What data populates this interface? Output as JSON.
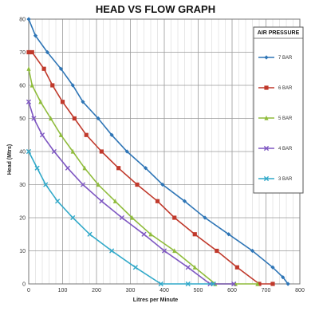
{
  "chart_data": {
    "type": "line",
    "title": "HEAD VS FLOW GRAPH",
    "xlabel": "Litres per Minute",
    "ylabel": "Head (Mtrs)",
    "xlim": [
      0,
      800
    ],
    "ylim": [
      0,
      80
    ],
    "xticks": [
      0,
      100,
      200,
      300,
      400,
      500,
      600,
      700,
      800
    ],
    "yticks": [
      0,
      10,
      20,
      30,
      40,
      50,
      60,
      70,
      80
    ],
    "grid": true,
    "legend_title": "AIR PRESSURE",
    "legend_position": "right",
    "series": [
      {
        "name": "7 BAR",
        "color": "#2e75b6",
        "marker": "diamond",
        "x": [
          0,
          20,
          55,
          95,
          130,
          160,
          205,
          245,
          290,
          345,
          395,
          460,
          520,
          590,
          660,
          720,
          750,
          765
        ],
        "y": [
          80,
          75,
          70,
          65,
          60,
          55,
          50,
          45,
          40,
          35,
          30,
          25,
          20,
          15,
          10,
          5,
          2,
          0
        ]
      },
      {
        "name": "6 BAR",
        "color": "#c0392b",
        "marker": "square",
        "x": [
          0,
          10,
          45,
          70,
          100,
          135,
          170,
          215,
          265,
          320,
          380,
          430,
          490,
          555,
          615,
          680,
          720
        ],
        "y": [
          70,
          70,
          65,
          60,
          55,
          50,
          45,
          40,
          35,
          30,
          25,
          20,
          15,
          10,
          5,
          0,
          0
        ]
      },
      {
        "name": "5 BAR",
        "color": "#8fbc3b",
        "marker": "triangle",
        "x": [
          0,
          10,
          35,
          65,
          95,
          130,
          165,
          205,
          255,
          305,
          360,
          430,
          490,
          550,
          610,
          675
        ],
        "y": [
          65,
          60,
          55,
          50,
          45,
          40,
          35,
          30,
          25,
          20,
          15,
          10,
          5,
          0,
          0,
          0
        ]
      },
      {
        "name": "4 BAR",
        "color": "#7e57c2",
        "marker": "x",
        "x": [
          0,
          15,
          40,
          75,
          115,
          160,
          215,
          275,
          340,
          400,
          470,
          535,
          605
        ],
        "y": [
          55,
          50,
          45,
          40,
          35,
          30,
          25,
          20,
          15,
          10,
          5,
          0,
          0
        ]
      },
      {
        "name": "3 BAR",
        "color": "#31a9c9",
        "marker": "x",
        "x": [
          0,
          25,
          50,
          85,
          130,
          180,
          245,
          315,
          390,
          470,
          545
        ],
        "y": [
          40,
          35,
          30,
          25,
          20,
          15,
          10,
          5,
          0,
          0,
          0
        ]
      }
    ]
  }
}
